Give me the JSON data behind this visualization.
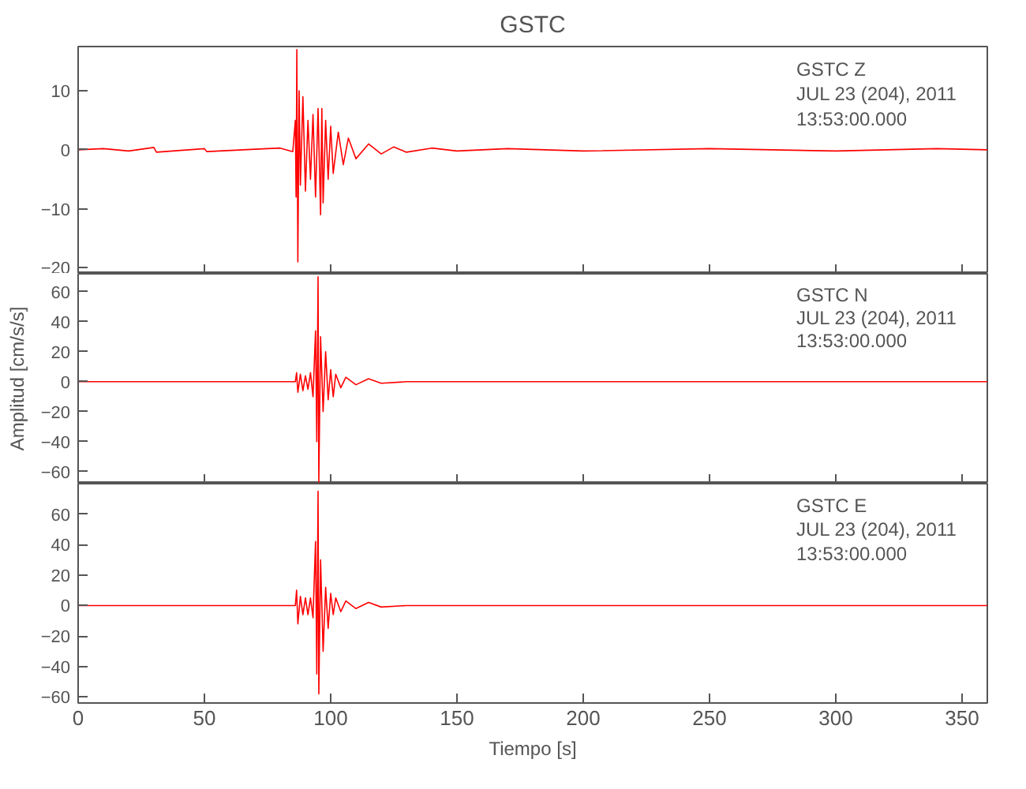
{
  "chart_data": [
    {
      "type": "line",
      "title": "GSTC",
      "tick_labels": "y",
      "xlim": [
        0,
        360
      ],
      "xticks": [
        0,
        50,
        100,
        150,
        200,
        250,
        300,
        350
      ],
      "ylim": [
        -21,
        17.5
      ],
      "yticks": [
        -20,
        -10,
        0,
        10
      ],
      "grid": false,
      "annotations": [
        "GSTC   Z",
        "JUL 23 (204), 2011",
        "13:53:00.000"
      ],
      "x": [
        0,
        10,
        20,
        30,
        31,
        50,
        51,
        70,
        80,
        85,
        86,
        86.3,
        86.6,
        87,
        87.5,
        88,
        89,
        90,
        91,
        92,
        93,
        94,
        95,
        96,
        96.5,
        97,
        98,
        99,
        100,
        101,
        103,
        105,
        107,
        110,
        115,
        120,
        125,
        130,
        140,
        150,
        170,
        200,
        250,
        300,
        340,
        360
      ],
      "series": [
        {
          "color": "#ff0000",
          "values": [
            0,
            0.2,
            -0.2,
            0.4,
            -0.4,
            0.2,
            -0.3,
            0.1,
            0.3,
            -0.3,
            5,
            -8,
            17,
            -19,
            10,
            -6,
            9,
            -7,
            5,
            -5,
            6,
            -8,
            7,
            -11,
            7,
            -9,
            5,
            -5,
            4,
            -4,
            3,
            -2.5,
            2,
            -1.5,
            1,
            -0.7,
            0.5,
            -0.4,
            0.3,
            -0.2,
            0.2,
            -0.2,
            0.2,
            -0.2,
            0.2,
            0
          ]
        }
      ]
    },
    {
      "type": "line",
      "ylabel": "Amplitud [cm/s/s]",
      "tick_labels": "y",
      "xlim": [
        0,
        360
      ],
      "xticks": [
        0,
        50,
        100,
        150,
        200,
        250,
        300,
        350
      ],
      "ylim": [
        -68,
        72
      ],
      "yticks": [
        -60,
        -40,
        -20,
        0,
        20,
        40,
        60
      ],
      "grid": false,
      "annotations": [
        "GSTC   N",
        "JUL 23 (204), 2011",
        "13:53:00.000"
      ],
      "x": [
        0,
        86,
        86.5,
        87,
        88,
        89,
        90,
        91,
        92,
        93,
        94,
        94.5,
        95,
        95.3,
        96,
        97,
        98,
        99,
        100,
        101,
        102,
        104,
        106,
        110,
        115,
        120,
        130,
        360
      ],
      "series": [
        {
          "color": "#ff0000",
          "values": [
            0,
            0,
            6,
            -7,
            5,
            -6,
            4,
            -5,
            6,
            -10,
            34,
            -40,
            70,
            -67,
            30,
            -20,
            20,
            -12,
            8,
            -10,
            5,
            -4,
            3,
            -2,
            2,
            -1,
            0,
            0
          ]
        }
      ]
    },
    {
      "type": "line",
      "xlabel": "Tiempo [s]",
      "xlim": [
        0,
        360
      ],
      "xticks": [
        0,
        50,
        100,
        150,
        200,
        250,
        300,
        350
      ],
      "ylim": [
        -64,
        80
      ],
      "yticks": [
        -60,
        -40,
        -20,
        0,
        20,
        40,
        60
      ],
      "grid": false,
      "annotations": [
        "GSTC   E",
        "JUL 23 (204), 2011",
        "13:53:00.000"
      ],
      "x": [
        0,
        86,
        86.5,
        87,
        88,
        89,
        90,
        91,
        92,
        93,
        94,
        94.5,
        95,
        95.3,
        96,
        97,
        98,
        99,
        100,
        101,
        102,
        104,
        106,
        110,
        115,
        120,
        130,
        360
      ],
      "series": [
        {
          "color": "#ff0000",
          "values": [
            0,
            0,
            10,
            -12,
            6,
            -6,
            5,
            -6,
            5,
            -8,
            42,
            -45,
            75,
            -58,
            30,
            -30,
            12,
            -15,
            8,
            -6,
            5,
            -4,
            3,
            -2,
            2,
            -1,
            0,
            0
          ]
        }
      ]
    }
  ]
}
